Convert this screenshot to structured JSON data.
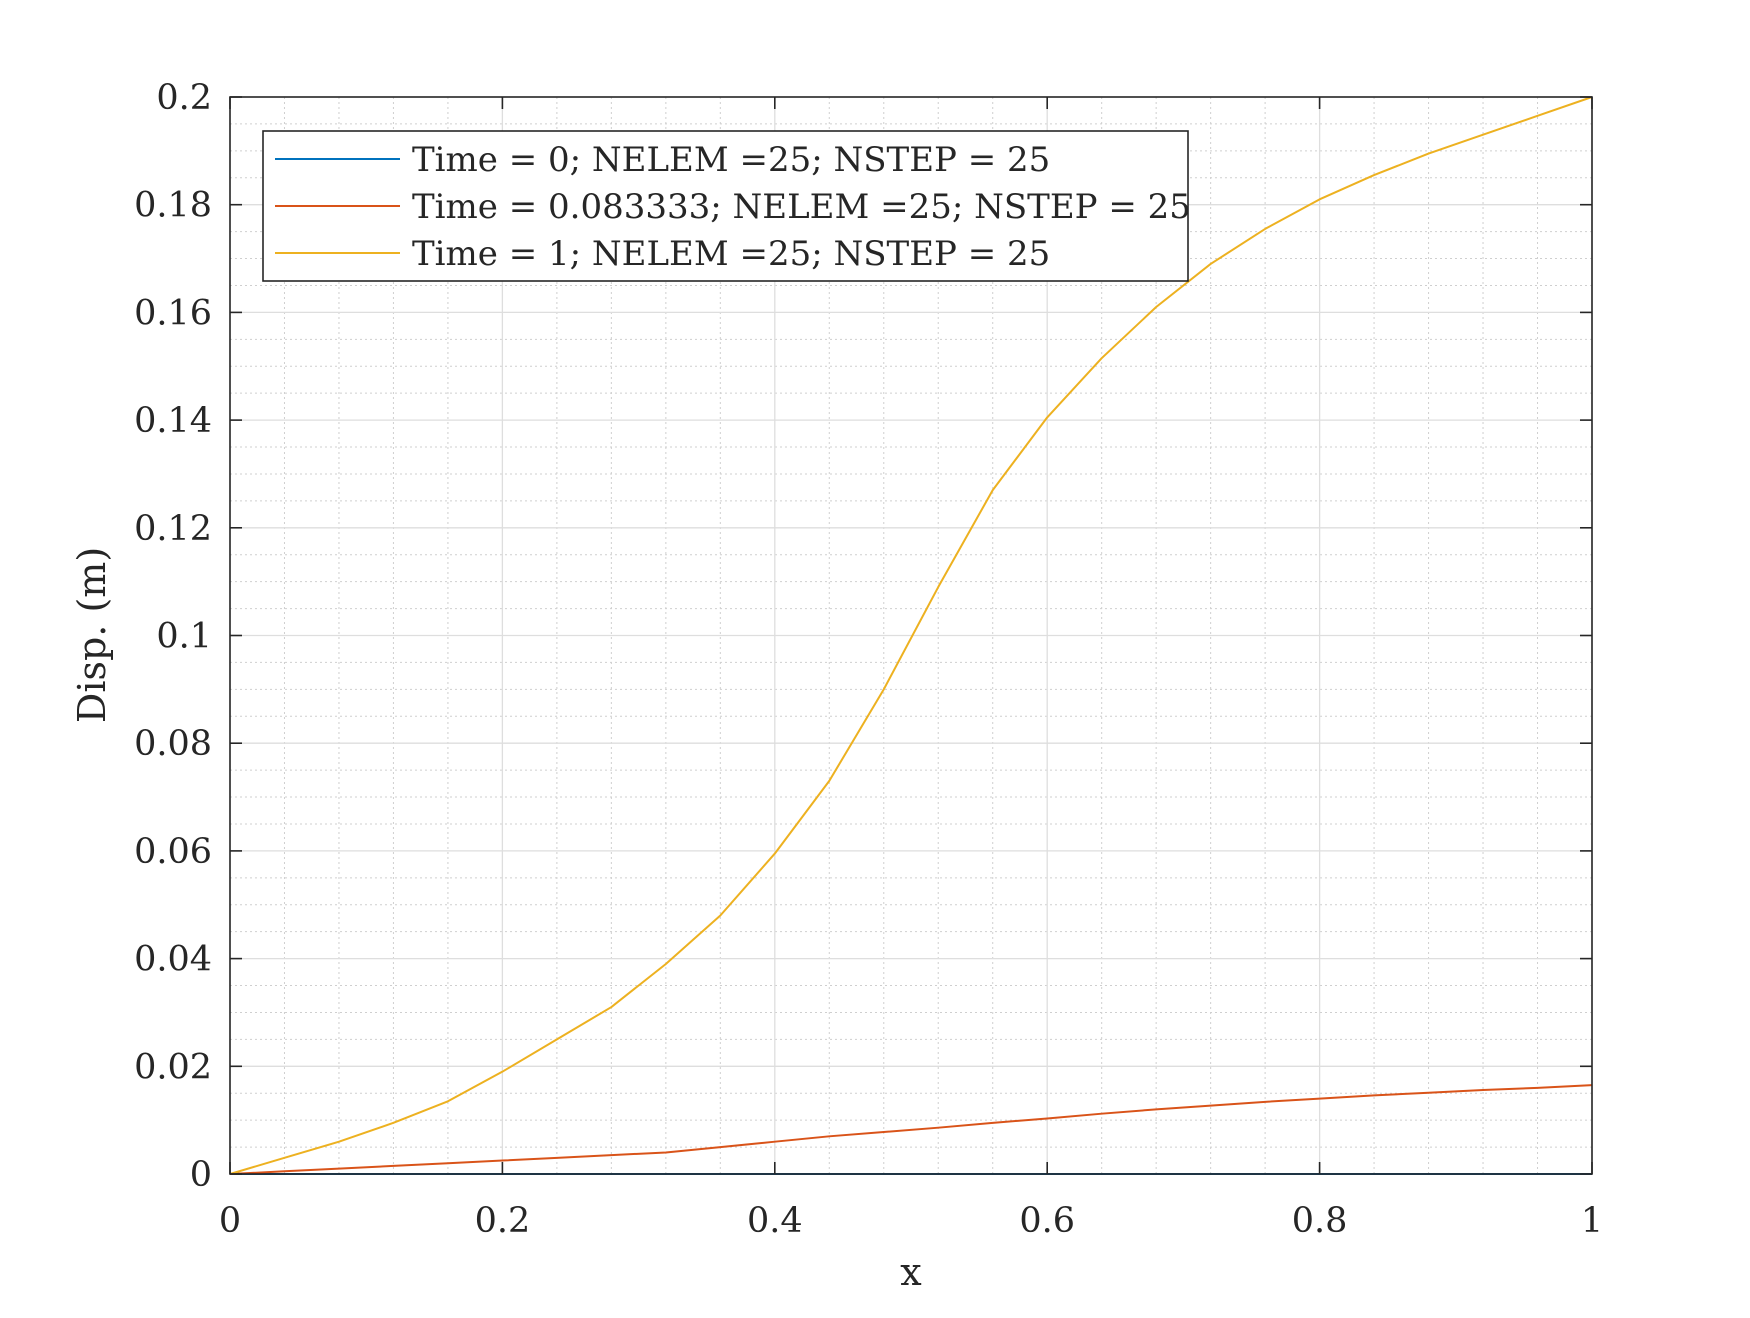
{
  "chart_data": {
    "type": "line",
    "title": "",
    "xlabel": "x",
    "ylabel": "Disp. (m)",
    "xlim": [
      0,
      1
    ],
    "ylim": [
      0,
      0.2
    ],
    "x_ticks": [
      0,
      0.2,
      0.4,
      0.6,
      0.8,
      1
    ],
    "x_tick_labels": [
      "0",
      "0.2",
      "0.4",
      "0.6",
      "0.8",
      "1"
    ],
    "y_ticks": [
      0,
      0.02,
      0.04,
      0.06,
      0.08,
      0.1,
      0.12,
      0.14,
      0.16,
      0.18,
      0.2
    ],
    "y_tick_labels": [
      "0",
      "0.02",
      "0.04",
      "0.06",
      "0.08",
      "0.1",
      "0.12",
      "0.14",
      "0.16",
      "0.18",
      "0.2"
    ],
    "grid": true,
    "minor_grid": true,
    "legend_position": "top-left",
    "x": [
      0,
      0.04,
      0.08,
      0.12,
      0.16,
      0.2,
      0.24,
      0.28,
      0.32,
      0.36,
      0.4,
      0.44,
      0.48,
      0.52,
      0.56,
      0.6,
      0.64,
      0.68,
      0.72,
      0.76,
      0.8,
      0.84,
      0.88,
      0.92,
      0.96,
      1
    ],
    "series": [
      {
        "name": "Time = 0; NELEM =25; NSTEP = 25",
        "color": "#0072BD",
        "values": [
          0,
          0,
          0,
          0,
          0,
          0,
          0,
          0,
          0,
          0,
          0,
          0,
          0,
          0,
          0,
          0,
          0,
          0,
          0,
          0,
          0,
          0,
          0,
          0,
          0,
          0
        ]
      },
      {
        "name": "Time = 0.083333; NELEM =25; NSTEP = 25",
        "color": "#D95319",
        "values": [
          0,
          0.0005,
          0.001,
          0.0015,
          0.002,
          0.0025,
          0.003,
          0.0035,
          0.004,
          0.005,
          0.006,
          0.007,
          0.0078,
          0.0086,
          0.0095,
          0.0103,
          0.0112,
          0.012,
          0.0127,
          0.0134,
          0.014,
          0.0146,
          0.0151,
          0.0156,
          0.016,
          0.0165
        ]
      },
      {
        "name": "Time = 1; NELEM =25; NSTEP = 25",
        "color": "#EDB120",
        "values": [
          0,
          0.003,
          0.006,
          0.0095,
          0.0135,
          0.019,
          0.025,
          0.031,
          0.039,
          0.048,
          0.0595,
          0.073,
          0.09,
          0.109,
          0.127,
          0.1405,
          0.1515,
          0.161,
          0.169,
          0.1755,
          0.181,
          0.1855,
          0.1895,
          0.193,
          0.1965,
          0.2
        ]
      }
    ]
  }
}
